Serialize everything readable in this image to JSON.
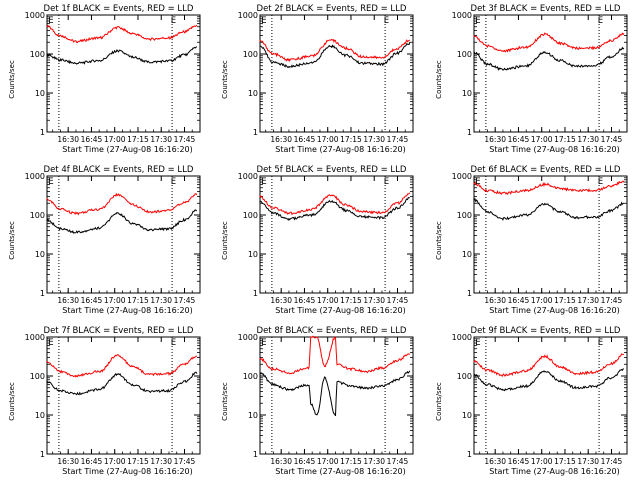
{
  "colors": {
    "events": "#000000",
    "lld": "#ff0000",
    "background": "#ffffff",
    "axis": "#000000"
  },
  "chart_data": [
    {
      "type": "line",
      "title": "Det 1f BLACK = Events, RED = LLD",
      "xlabel": "Start Time (27-Aug-08 16:16:20)",
      "ylabel": "Counts/sec",
      "xticks": [
        "16:30",
        "16:45",
        "17:00",
        "17:15",
        "17:30",
        "17:45"
      ],
      "xlim": [
        "16:16:20",
        "17:55"
      ],
      "yscale": "log",
      "ylim": [
        1,
        1000
      ],
      "yticks": [
        "1",
        "10",
        "100",
        "1000"
      ],
      "markers": [
        "E",
        "E"
      ],
      "marker_times": [
        "16:21",
        "17:40"
      ],
      "vlines": [
        "16:24",
        "17:37"
      ],
      "series": [
        {
          "x": [
            "16:16",
            "16:25",
            "16:35",
            "16:50",
            "17:02",
            "17:12",
            "17:22",
            "17:35",
            "17:45",
            "17:53"
          ],
          "values": [
            520,
            290,
            210,
            260,
            480,
            330,
            240,
            260,
            370,
            540
          ]
        },
        {
          "x": [
            "16:16",
            "16:25",
            "16:35",
            "16:50",
            "17:02",
            "17:12",
            "17:22",
            "17:35",
            "17:45",
            "17:53"
          ],
          "values": [
            95,
            70,
            58,
            68,
            120,
            82,
            62,
            66,
            95,
            150
          ]
        }
      ]
    },
    {
      "type": "line",
      "title": "Det 2f BLACK = Events, RED = LLD",
      "xlabel": "Start Time (27-Aug-08 16:16:20)",
      "ylabel": "Counts/sec",
      "xticks": [
        "16:30",
        "16:45",
        "17:00",
        "17:15",
        "17:30",
        "17:45"
      ],
      "xlim": [
        "16:16:20",
        "17:55"
      ],
      "yscale": "log",
      "ylim": [
        1,
        1000
      ],
      "yticks": [
        "1",
        "10",
        "100",
        "1000"
      ],
      "markers": [
        "E",
        "E"
      ],
      "marker_times": [
        "16:21",
        "17:40"
      ],
      "vlines": [
        "16:24",
        "17:37"
      ],
      "series": [
        {
          "x": [
            "16:16",
            "16:25",
            "16:35",
            "16:50",
            "17:02",
            "17:12",
            "17:22",
            "17:35",
            "17:45",
            "17:53"
          ],
          "values": [
            220,
            100,
            70,
            90,
            230,
            140,
            85,
            80,
            140,
            230
          ]
        },
        {
          "x": [
            "16:16",
            "16:25",
            "16:35",
            "16:50",
            "17:02",
            "17:12",
            "17:22",
            "17:35",
            "17:45",
            "17:53"
          ],
          "values": [
            160,
            62,
            48,
            60,
            160,
            92,
            58,
            55,
            105,
            190
          ]
        }
      ]
    },
    {
      "type": "line",
      "title": "Det 3f BLACK = Events, RED = LLD",
      "xlabel": "Start Time (27-Aug-08 16:16:20)",
      "ylabel": "Counts/sec",
      "xticks": [
        "16:30",
        "16:45",
        "17:00",
        "17:15",
        "17:30",
        "17:45"
      ],
      "xlim": [
        "16:16:20",
        "17:55"
      ],
      "yscale": "log",
      "ylim": [
        1,
        1000
      ],
      "yticks": [
        "1",
        "10",
        "100",
        "1000"
      ],
      "markers": [
        "E",
        "E"
      ],
      "marker_times": [
        "16:21",
        "17:40"
      ],
      "vlines": [
        "16:24",
        "17:37"
      ],
      "series": [
        {
          "x": [
            "16:16",
            "16:25",
            "16:35",
            "16:50",
            "17:02",
            "17:12",
            "17:22",
            "17:35",
            "17:45",
            "17:53"
          ],
          "values": [
            290,
            160,
            120,
            150,
            320,
            190,
            140,
            145,
            220,
            330
          ]
        },
        {
          "x": [
            "16:16",
            "16:25",
            "16:35",
            "16:50",
            "17:02",
            "17:12",
            "17:22",
            "17:35",
            "17:45",
            "17:53"
          ],
          "values": [
            110,
            55,
            40,
            50,
            110,
            68,
            48,
            52,
            85,
            140
          ]
        }
      ]
    },
    {
      "type": "line",
      "title": "Det 4f BLACK = Events, RED = LLD",
      "xlabel": "Start Time (27-Aug-08 16:16:20)",
      "ylabel": "Counts/sec",
      "xticks": [
        "16:30",
        "16:45",
        "17:00",
        "17:15",
        "17:30",
        "17:45"
      ],
      "xlim": [
        "16:16:20",
        "17:55"
      ],
      "yscale": "log",
      "ylim": [
        1,
        1000
      ],
      "yticks": [
        "1",
        "10",
        "100",
        "1000"
      ],
      "markers": [
        "E",
        "E"
      ],
      "marker_times": [
        "16:21",
        "17:40"
      ],
      "vlines": [
        "16:24",
        "17:37"
      ],
      "series": [
        {
          "x": [
            "16:16",
            "16:25",
            "16:35",
            "16:50",
            "17:02",
            "17:12",
            "17:22",
            "17:35",
            "17:45",
            "17:53"
          ],
          "values": [
            260,
            140,
            110,
            140,
            330,
            180,
            120,
            130,
            210,
            340
          ]
        },
        {
          "x": [
            "16:16",
            "16:25",
            "16:35",
            "16:50",
            "17:02",
            "17:12",
            "17:22",
            "17:35",
            "17:45",
            "17:53"
          ],
          "values": [
            75,
            45,
            36,
            46,
            110,
            60,
            42,
            44,
            75,
            130
          ]
        }
      ]
    },
    {
      "type": "line",
      "title": "Det 5f BLACK = Events, RED = LLD",
      "xlabel": "Start Time (27-Aug-08 16:16:20)",
      "ylabel": "Counts/sec",
      "xticks": [
        "16:30",
        "16:45",
        "17:00",
        "17:15",
        "17:30",
        "17:45"
      ],
      "xlim": [
        "16:16:20",
        "17:55"
      ],
      "yscale": "log",
      "ylim": [
        1,
        1000
      ],
      "yticks": [
        "1",
        "10",
        "100",
        "1000"
      ],
      "markers": [
        "E",
        "E"
      ],
      "marker_times": [
        "16:21",
        "17:40"
      ],
      "vlines": [
        "16:24",
        "17:37"
      ],
      "series": [
        {
          "x": [
            "16:16",
            "16:25",
            "16:35",
            "16:50",
            "17:02",
            "17:12",
            "17:22",
            "17:35",
            "17:45",
            "17:53"
          ],
          "values": [
            300,
            150,
            110,
            140,
            320,
            180,
            120,
            115,
            200,
            360
          ]
        },
        {
          "x": [
            "16:16",
            "16:25",
            "16:35",
            "16:50",
            "17:02",
            "17:12",
            "17:22",
            "17:35",
            "17:45",
            "17:53"
          ],
          "values": [
            220,
            110,
            80,
            100,
            230,
            130,
            90,
            85,
            150,
            270
          ]
        }
      ]
    },
    {
      "type": "line",
      "title": "Det 6f BLACK = Events, RED = LLD",
      "xlabel": "Start Time (27-Aug-08 16:16:20)",
      "ylabel": "Counts/sec",
      "xticks": [
        "16:30",
        "16:45",
        "17:00",
        "17:15",
        "17:30",
        "17:45"
      ],
      "xlim": [
        "16:16:20",
        "17:55"
      ],
      "yscale": "log",
      "ylim": [
        1,
        1000
      ],
      "yticks": [
        "1",
        "10",
        "100",
        "1000"
      ],
      "markers": [
        "E",
        "E"
      ],
      "marker_times": [
        "16:21",
        "17:40"
      ],
      "vlines": [
        "16:24",
        "17:37"
      ],
      "series": [
        {
          "x": [
            "16:16",
            "16:25",
            "16:35",
            "16:50",
            "17:02",
            "17:12",
            "17:22",
            "17:35",
            "17:45",
            "17:53"
          ],
          "values": [
            650,
            420,
            360,
            420,
            610,
            480,
            420,
            430,
            560,
            720
          ]
        },
        {
          "x": [
            "16:16",
            "16:25",
            "16:35",
            "16:50",
            "17:02",
            "17:12",
            "17:22",
            "17:35",
            "17:45",
            "17:53"
          ],
          "values": [
            250,
            120,
            80,
            100,
            190,
            120,
            85,
            90,
            130,
            200
          ]
        }
      ]
    },
    {
      "type": "line",
      "title": "Det 7f BLACK = Events, RED = LLD",
      "xlabel": "Start Time (27-Aug-08 16:16:20)",
      "ylabel": "Counts/sec",
      "xticks": [
        "16:30",
        "16:45",
        "17:00",
        "17:15",
        "17:30",
        "17:45"
      ],
      "xlim": [
        "16:16:20",
        "17:55"
      ],
      "yscale": "log",
      "ylim": [
        1,
        1000
      ],
      "yticks": [
        "1",
        "10",
        "100",
        "1000"
      ],
      "markers": [
        "E",
        "E"
      ],
      "marker_times": [
        "16:21",
        "17:40"
      ],
      "vlines": [
        "16:24",
        "17:37"
      ],
      "series": [
        {
          "x": [
            "16:16",
            "16:25",
            "16:35",
            "16:50",
            "17:02",
            "17:12",
            "17:22",
            "17:35",
            "17:45",
            "17:53"
          ],
          "values": [
            230,
            130,
            100,
            130,
            340,
            170,
            110,
            115,
            200,
            330
          ]
        },
        {
          "x": [
            "16:16",
            "16:25",
            "16:35",
            "16:50",
            "17:02",
            "17:12",
            "17:22",
            "17:35",
            "17:45",
            "17:53"
          ],
          "values": [
            70,
            42,
            35,
            45,
            110,
            58,
            40,
            42,
            72,
            120
          ]
        }
      ]
    },
    {
      "type": "line",
      "title": "Det 8f BLACK = Events, RED = LLD",
      "xlabel": "Start Time (27-Aug-08 16:16:20)",
      "ylabel": "Counts/sec",
      "xticks": [
        "16:30",
        "16:45",
        "17:00",
        "17:15",
        "17:30",
        "17:45"
      ],
      "xlim": [
        "16:16:20",
        "17:55"
      ],
      "yscale": "log",
      "ylim": [
        1,
        1000
      ],
      "yticks": [
        "1",
        "10",
        "100",
        "1000"
      ],
      "markers": [
        "E",
        "E"
      ],
      "marker_times": [
        "16:21",
        "17:40"
      ],
      "vlines": [
        "16:24",
        "17:37"
      ],
      "series": [
        {
          "x": [
            "16:16",
            "16:25",
            "16:35",
            "16:48",
            "16:49",
            "16:53",
            "16:58",
            "17:05",
            "17:06",
            "17:15",
            "17:25",
            "17:35",
            "17:45",
            "17:53"
          ],
          "values": [
            280,
            150,
            120,
            160,
            1000,
            1000,
            180,
            1000,
            200,
            150,
            130,
            160,
            250,
            380
          ]
        },
        {
          "x": [
            "16:16",
            "16:25",
            "16:35",
            "16:48",
            "16:49",
            "16:53",
            "16:58",
            "17:05",
            "17:06",
            "17:15",
            "17:25",
            "17:35",
            "17:45",
            "17:53"
          ],
          "values": [
            120,
            60,
            45,
            60,
            20,
            10,
            90,
            10,
            70,
            55,
            48,
            55,
            80,
            130
          ]
        }
      ]
    },
    {
      "type": "line",
      "title": "Det 9f BLACK = Events, RED = LLD",
      "xlabel": "Start Time (27-Aug-08 16:16:20)",
      "ylabel": "Counts/sec",
      "xticks": [
        "16:30",
        "16:45",
        "17:00",
        "17:15",
        "17:30",
        "17:45"
      ],
      "xlim": [
        "16:16:20",
        "17:55"
      ],
      "yscale": "log",
      "ylim": [
        1,
        1000
      ],
      "yticks": [
        "1",
        "10",
        "100",
        "1000"
      ],
      "markers": [
        "E",
        "E"
      ],
      "marker_times": [
        "16:21",
        "17:40"
      ],
      "vlines": [
        "16:24",
        "17:37"
      ],
      "series": [
        {
          "x": [
            "16:16",
            "16:25",
            "16:35",
            "16:50",
            "17:02",
            "17:12",
            "17:22",
            "17:35",
            "17:45",
            "17:53"
          ],
          "values": [
            240,
            140,
            105,
            135,
            320,
            170,
            115,
            125,
            210,
            360
          ]
        },
        {
          "x": [
            "16:16",
            "16:25",
            "16:35",
            "16:50",
            "17:02",
            "17:12",
            "17:22",
            "17:35",
            "17:45",
            "17:53"
          ],
          "values": [
            110,
            60,
            45,
            55,
            130,
            75,
            50,
            55,
            90,
            150
          ]
        }
      ]
    }
  ]
}
